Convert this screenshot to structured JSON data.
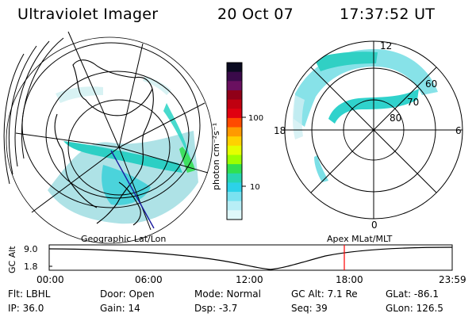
{
  "header": {
    "title": "Ultraviolet Imager",
    "date": "20 Oct 07",
    "time": "17:37:52 UT"
  },
  "colorbar": {
    "unit_label": "photon cm⁻²s⁻¹",
    "ticks": [
      "100",
      "10"
    ],
    "colors": [
      "#0a0a20",
      "#3a0a4a",
      "#6a1060",
      "#900018",
      "#c00010",
      "#e00010",
      "#ff4a00",
      "#ff9a00",
      "#ffd200",
      "#e4ff00",
      "#9cff00",
      "#30e050",
      "#28d6b0",
      "#2cd2e8",
      "#7ae2f0",
      "#b8eef6",
      "#dff8fa"
    ]
  },
  "left_map": {
    "projection_label": "Geographic Lat/Lon"
  },
  "right_polar": {
    "coord_label": "Apex  MLat/MLT",
    "mlt_labels": [
      "12",
      "18",
      "6",
      "0"
    ],
    "lat_labels": [
      "60",
      "70",
      "80"
    ]
  },
  "timeline": {
    "axis_label": "GC Alt",
    "y_ticks": [
      "9.0",
      "1.8"
    ],
    "x_ticks": [
      "00:00",
      "06:00",
      "12:00",
      "18:00",
      "23:59"
    ],
    "marker_color": "#ff0000"
  },
  "status": {
    "flt": "Flt: LBHL",
    "ip": "IP: 36.0",
    "door": "Door: Open",
    "gain": "Gain: 14",
    "mode": "Mode: Normal",
    "dsp": "Dsp:   -3.7",
    "gc_alt": "GC Alt: 7.1 Re",
    "seq": "Seq: 39",
    "glat": "GLat: -86.1",
    "glon": "GLon: 126.5"
  }
}
